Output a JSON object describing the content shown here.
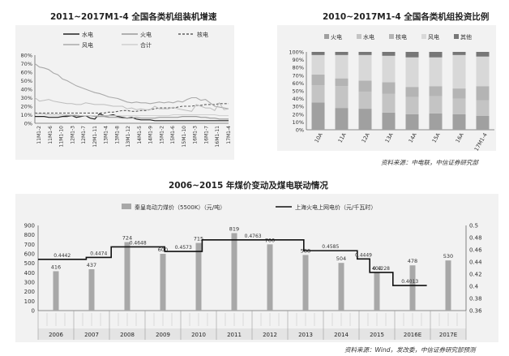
{
  "charts": {
    "left": {
      "title": "2011~2017M1-4 全国各类机组装机增速"
    },
    "right": {
      "title": "2010~2017M1-4 全国各类机组投资比例",
      "source": "资料来源：中电联，中信证券研究部"
    },
    "bottom": {
      "title": "2006~2015 年煤价变动及煤电联动情况",
      "source": "资料来源：Wind，发改委，中信证券研究部预测"
    }
  },
  "chart_data": [
    {
      "type": "line",
      "title": "2011~2017M1-4 全国各类机组装机增速",
      "x_ticks": [
        "11M1-2",
        "11M1-6",
        "11M1-10",
        "12M1-3",
        "12M1-7",
        "12M1-11",
        "13M1-4",
        "13M1-8",
        "13M1-12",
        "14M1-5",
        "14M1-9",
        "15M1-2",
        "15M1-6",
        "15M1-10",
        "16M1-3",
        "16M1-7",
        "16M1-11",
        "17M1-4"
      ],
      "ylim": [
        0,
        80
      ],
      "y_ticks": [
        "0%",
        "10%",
        "20%",
        "30%",
        "40%",
        "50%",
        "60%",
        "70%",
        "80%"
      ],
      "series": [
        {
          "name": "水电",
          "color": "#222222",
          "width": 1.2,
          "values": [
            8,
            8,
            8,
            7,
            7,
            7,
            8,
            8,
            9,
            7,
            8,
            9,
            6,
            5,
            11,
            9,
            9,
            10,
            8,
            7,
            6,
            7,
            5,
            4,
            4,
            4,
            3,
            3,
            3,
            3,
            3,
            3,
            3,
            3,
            3,
            3,
            3,
            3,
            3,
            3,
            3,
            3,
            3
          ]
        },
        {
          "name": "火电",
          "color": "#9a9a9a",
          "width": 1.2,
          "values": [
            11,
            11,
            11,
            10,
            10,
            10,
            10,
            9,
            9,
            9,
            9,
            9,
            9,
            8,
            8,
            8,
            7,
            7,
            7,
            6,
            6,
            6,
            7,
            6,
            6,
            6,
            6,
            7,
            7,
            7,
            7,
            7,
            8,
            8,
            8,
            8,
            7,
            7,
            6,
            6,
            5,
            5,
            5
          ]
        },
        {
          "name": "核电",
          "color": "#5e5e5e",
          "width": 1.1,
          "dash": "3 2",
          "values": [
            12,
            12,
            12,
            12,
            12,
            12,
            12,
            12,
            12,
            12,
            12,
            12,
            12,
            12,
            12,
            12,
            13,
            13,
            14,
            15,
            15,
            14,
            14,
            15,
            15,
            16,
            17,
            18,
            18,
            18,
            18,
            19,
            20,
            20,
            20,
            21,
            21,
            22,
            22,
            22,
            23,
            23,
            23
          ]
        },
        {
          "name": "风电",
          "color": "#aaaaaa",
          "width": 1.1,
          "values": [
            70,
            66,
            65,
            63,
            59,
            57,
            52,
            50,
            47,
            44,
            42,
            40,
            38,
            36,
            35,
            33,
            31,
            30,
            29,
            27,
            25,
            24,
            25,
            24,
            24,
            23,
            24,
            25,
            24,
            25,
            24,
            26,
            25,
            28,
            30,
            30,
            27,
            28,
            24,
            20,
            19,
            18,
            17
          ]
        },
        {
          "name": "合计",
          "color": "#cfcfcf",
          "width": 1.0,
          "values": [
            11,
            11,
            11,
            10,
            10,
            10,
            10,
            10,
            10,
            10,
            9,
            9,
            9,
            9,
            9,
            9,
            9,
            9,
            9,
            9,
            9,
            9,
            9,
            9,
            9,
            9,
            9,
            9,
            9,
            9,
            10,
            10,
            10,
            10,
            10,
            10,
            10,
            10,
            10,
            10,
            9,
            9,
            9
          ]
        },
        {
          "name": "",
          "color": "#bdbdbd",
          "width": 1.0,
          "values": [
            30,
            26,
            27,
            28,
            26,
            25,
            24,
            23,
            23,
            22,
            22,
            24,
            23,
            22,
            22,
            22,
            21,
            20,
            20,
            20,
            17,
            18,
            16,
            17,
            16,
            16,
            20,
            17,
            17,
            17,
            19,
            17,
            16,
            15,
            14,
            22,
            20,
            18,
            18,
            15,
            24,
            16,
            17
          ]
        }
      ]
    },
    {
      "type": "bar",
      "stacked": true,
      "title": "2010~2017M1-4 全国各类机组投资比例",
      "categories": [
        "10A",
        "11A",
        "12A",
        "13A",
        "14A",
        "15A",
        "16A",
        "17M1-4"
      ],
      "ylim": [
        0,
        100
      ],
      "y_ticks": [
        "0%",
        "10%",
        "20%",
        "30%",
        "40%",
        "50%",
        "60%",
        "70%",
        "80%",
        "90%",
        "100%"
      ],
      "series": [
        {
          "name": "火电",
          "color": "#a0a0a0",
          "values": [
            35,
            28,
            27,
            22,
            20,
            21,
            20,
            18
          ]
        },
        {
          "name": "水电",
          "color": "#c4c4c4",
          "values": [
            22,
            28,
            22,
            24,
            22,
            22,
            20,
            20
          ]
        },
        {
          "name": "核电",
          "color": "#b4b4b4",
          "values": [
            14,
            10,
            14,
            15,
            13,
            13,
            13,
            18
          ]
        },
        {
          "name": "风电",
          "color": "#d8d8d8",
          "values": [
            25,
            30,
            33,
            34,
            38,
            37,
            43,
            38
          ]
        },
        {
          "name": "其他",
          "color": "#777777",
          "values": [
            4,
            4,
            4,
            5,
            7,
            7,
            4,
            6
          ]
        }
      ]
    },
    {
      "type": "bar",
      "title": "2006~2015 年煤价变动及煤电联动情况",
      "legend": [
        "秦皇岛动力煤价（5500K）（元/吨）",
        "上海火电上网电价（元/千瓦时）"
      ],
      "ylim_left": [
        0,
        900
      ],
      "ylim_right": [
        0.36,
        0.5
      ],
      "y_ticks_left": [
        "0",
        "100",
        "200",
        "300",
        "400",
        "500",
        "600",
        "700",
        "800",
        "900"
      ],
      "y_ticks_right": [
        "0.36",
        "0.38",
        "0.4",
        "0.42",
        "0.44",
        "0.46",
        "0.48",
        "0.5"
      ],
      "years": [
        "2006",
        "2007",
        "2008",
        "2009",
        "2010",
        "2011",
        "2012",
        "2013",
        "2014",
        "2015",
        "2016E",
        "2017E"
      ],
      "bars": [
        {
          "year": "2006",
          "value": 416,
          "label": "416"
        },
        {
          "year": "2007",
          "value": 437,
          "label": "437"
        },
        {
          "year": "2008",
          "value": 724,
          "label": "724"
        },
        {
          "year": "2009",
          "value": 600,
          "label": "600"
        },
        {
          "year": "2010",
          "value": 715,
          "label": "715"
        },
        {
          "year": "2011",
          "value": 819,
          "label": "819"
        },
        {
          "year": "2012",
          "value": 700,
          "label": "700"
        },
        {
          "year": "2013",
          "value": 588,
          "label": "588"
        },
        {
          "year": "2014",
          "value": 504,
          "label": "504"
        },
        {
          "year": "2015",
          "value": 402,
          "label": "402"
        },
        {
          "year": "2016E",
          "value": 478,
          "label": "478"
        },
        {
          "year": "2017E",
          "value": 530,
          "label": "530"
        }
      ],
      "price_steps": [
        {
          "from": 0,
          "to": 1.35,
          "value": 0.4442,
          "label": "0.4442"
        },
        {
          "from": 1.35,
          "to": 2.05,
          "value": 0.4474,
          "label": "0.4474"
        },
        {
          "from": 2.05,
          "to": 3.55,
          "value": 0.4648,
          "label": "0.4648"
        },
        {
          "from": 3.55,
          "to": 4.6,
          "value": 0.4573,
          "label": "0.4573"
        },
        {
          "from": 4.6,
          "to": 7.45,
          "value": 0.4763,
          "label": "0.4763"
        },
        {
          "from": 7.45,
          "to": 8.95,
          "value": 0.4585,
          "label": "0.4585"
        },
        {
          "from": 8.95,
          "to": 9.3,
          "value": 0.4449,
          "label": "0.4449"
        },
        {
          "from": 9.3,
          "to": 9.95,
          "value": 0.4228,
          "label": "0.4228"
        },
        {
          "from": 9.95,
          "to": 10.9,
          "value": 0.4013,
          "label": "0.4013"
        }
      ]
    }
  ]
}
